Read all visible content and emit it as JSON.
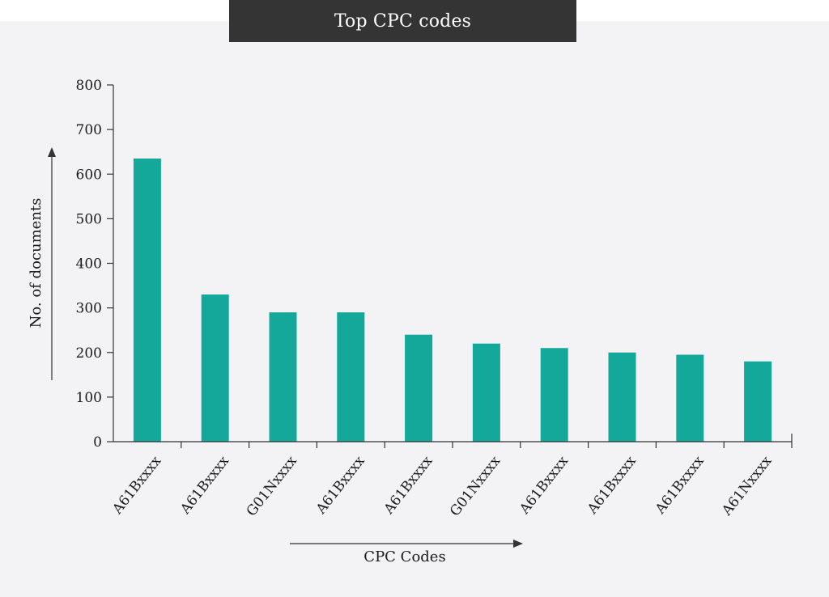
{
  "chart_data": {
    "type": "bar",
    "title": "Top CPC codes",
    "xlabel": "CPC Codes",
    "ylabel": "No. of documents",
    "categories": [
      "A61Bxxxx",
      "A61Bxxxx",
      "G01Nxxxx",
      "A61Bxxxx",
      "A61Bxxxx",
      "G01Nxxxx",
      "A61Bxxxx",
      "A61Bxxxx",
      "A61Bxxxx",
      "A61Nxxxx"
    ],
    "values": [
      635,
      330,
      290,
      290,
      240,
      220,
      210,
      200,
      195,
      180
    ],
    "ylim": [
      0,
      800
    ],
    "yticks": [
      0,
      100,
      200,
      300,
      400,
      500,
      600,
      700,
      800
    ],
    "grid": false,
    "bar_color": "#14a89a"
  }
}
